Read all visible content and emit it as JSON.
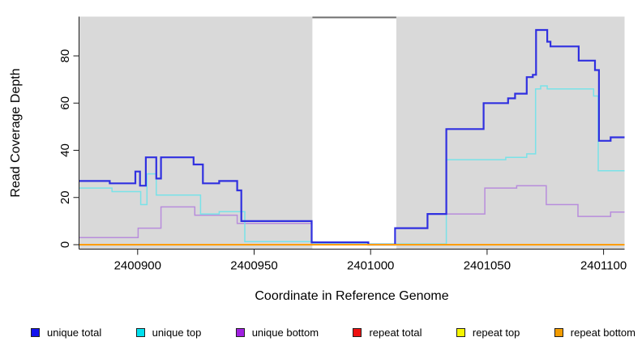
{
  "chart_data": {
    "type": "line",
    "subtype": "step-coverage",
    "title": "",
    "xlabel": "Coordinate in Reference Genome",
    "ylabel": "Read Coverage Depth",
    "x_ticks": [
      2400900,
      2400950,
      2401000,
      2401050,
      2401100
    ],
    "y_ticks": [
      0,
      20,
      40,
      60,
      80
    ],
    "x_range": [
      2400875,
      2401109
    ],
    "y_range": [
      -2,
      97
    ],
    "grid": false,
    "panel_bg": "#d9d9d9",
    "axis_color": "#1a1a1a",
    "masked_region": {
      "x_start": 2400975,
      "x_end": 2401011,
      "color": "#ffffff",
      "top_border_color": "#6e6e6e"
    },
    "legend_position": "bottom",
    "draw_order": [
      2,
      1,
      0,
      3,
      4,
      5
    ],
    "series": [
      {
        "name": "unique total",
        "color": "#3030e0",
        "legend_color": "#1111ee",
        "width": 2.2,
        "steps": [
          [
            2400875,
            27
          ],
          [
            2400888,
            26
          ],
          [
            2400899,
            31
          ],
          [
            2400901,
            25
          ],
          [
            2400903.5,
            37
          ],
          [
            2400908,
            28
          ],
          [
            2400910,
            37
          ],
          [
            2400924,
            34
          ],
          [
            2400928,
            26
          ],
          [
            2400935,
            27
          ],
          [
            2400942.7,
            23
          ],
          [
            2400944.5,
            10
          ],
          [
            2400974.7,
            1
          ],
          [
            2400999,
            0
          ],
          [
            2401010.5,
            7
          ],
          [
            2401024.4,
            13
          ],
          [
            2401032.5,
            49
          ],
          [
            2401048.5,
            60
          ],
          [
            2401059,
            62
          ],
          [
            2401062,
            64
          ],
          [
            2401067,
            71
          ],
          [
            2401069.6,
            72
          ],
          [
            2401071,
            91
          ],
          [
            2401075.8,
            86
          ],
          [
            2401077.2,
            84
          ],
          [
            2401089.3,
            78
          ],
          [
            2401096.3,
            74
          ],
          [
            2401098,
            44
          ],
          [
            2401103,
            45.5
          ]
        ]
      },
      {
        "name": "unique top",
        "color": "#79e2e8",
        "legend_color": "#00e0ee",
        "width": 1.5,
        "steps": [
          [
            2400875,
            24
          ],
          [
            2400889,
            22.5
          ],
          [
            2400901.3,
            17
          ],
          [
            2400904,
            30
          ],
          [
            2400908,
            21
          ],
          [
            2400927,
            13
          ],
          [
            2400935,
            14
          ],
          [
            2400946,
            1.3
          ],
          [
            2400975,
            0.3
          ],
          [
            2401032.5,
            36
          ],
          [
            2401058,
            37
          ],
          [
            2401067,
            38.5
          ],
          [
            2401070.8,
            66
          ],
          [
            2401073,
            67.3
          ],
          [
            2401075.8,
            66
          ],
          [
            2401095.7,
            63
          ],
          [
            2401097.7,
            31.3
          ]
        ]
      },
      {
        "name": "unique bottom",
        "color": "#b88ddc",
        "legend_color": "#a020e0",
        "width": 1.5,
        "steps": [
          [
            2400875,
            3
          ],
          [
            2400900.2,
            7
          ],
          [
            2400910,
            16
          ],
          [
            2400924.5,
            12.5
          ],
          [
            2400942.7,
            9
          ],
          [
            2400974.7,
            0.2
          ],
          [
            2401010.5,
            7
          ],
          [
            2401024.4,
            13
          ],
          [
            2401049,
            24
          ],
          [
            2401062.7,
            25
          ],
          [
            2401075.4,
            17
          ],
          [
            2401089,
            12
          ],
          [
            2401103,
            13.8
          ]
        ]
      },
      {
        "name": "repeat total",
        "color": "#dd2222",
        "legend_color": "#ee1111",
        "width": 1.5,
        "steps": [
          [
            2400875,
            0
          ]
        ]
      },
      {
        "name": "repeat top",
        "color": "#f0f000",
        "legend_color": "#f5f500",
        "width": 1.5,
        "steps": [
          [
            2400875,
            0
          ]
        ]
      },
      {
        "name": "repeat bottom",
        "color": "#ff9d00",
        "legend_color": "#f39c00",
        "width": 2,
        "steps": [
          [
            2400875,
            0
          ]
        ]
      }
    ]
  }
}
